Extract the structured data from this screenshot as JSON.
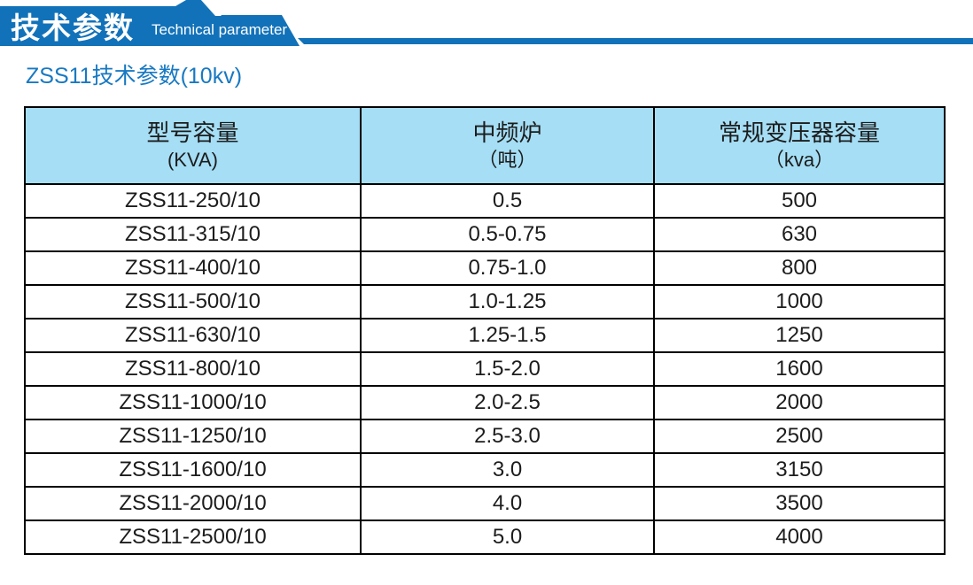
{
  "banner": {
    "title_cn": "技术参数",
    "title_en": "Technical parameter",
    "ribbon_color": "#1272b9"
  },
  "page_title": "ZSS11技术参数(10kv)",
  "colors": {
    "banner_blue": "#1272b9",
    "table_header_bg": "#a5def5",
    "title_blue": "#1879c2",
    "table_border": "#000000"
  },
  "table": {
    "columns": [
      {
        "line1": "型号容量",
        "line2": "(KVA)"
      },
      {
        "line1": "中频炉",
        "line2": "（吨）"
      },
      {
        "line1": "常规变压器容量",
        "line2": "（kva）"
      }
    ],
    "rows": [
      [
        "ZSS11-250/10",
        "0.5",
        "500"
      ],
      [
        "ZSS11-315/10",
        "0.5-0.75",
        "630"
      ],
      [
        "ZSS11-400/10",
        "0.75-1.0",
        "800"
      ],
      [
        "ZSS11-500/10",
        "1.0-1.25",
        "1000"
      ],
      [
        "ZSS11-630/10",
        "1.25-1.5",
        "1250"
      ],
      [
        "ZSS11-800/10",
        "1.5-2.0",
        "1600"
      ],
      [
        "ZSS11-1000/10",
        "2.0-2.5",
        "2000"
      ],
      [
        "ZSS11-1250/10",
        "2.5-3.0",
        "2500"
      ],
      [
        "ZSS11-1600/10",
        "3.0",
        "3150"
      ],
      [
        "ZSS11-2000/10",
        "4.0",
        "3500"
      ],
      [
        "ZSS11-2500/10",
        "5.0",
        "4000"
      ]
    ]
  }
}
